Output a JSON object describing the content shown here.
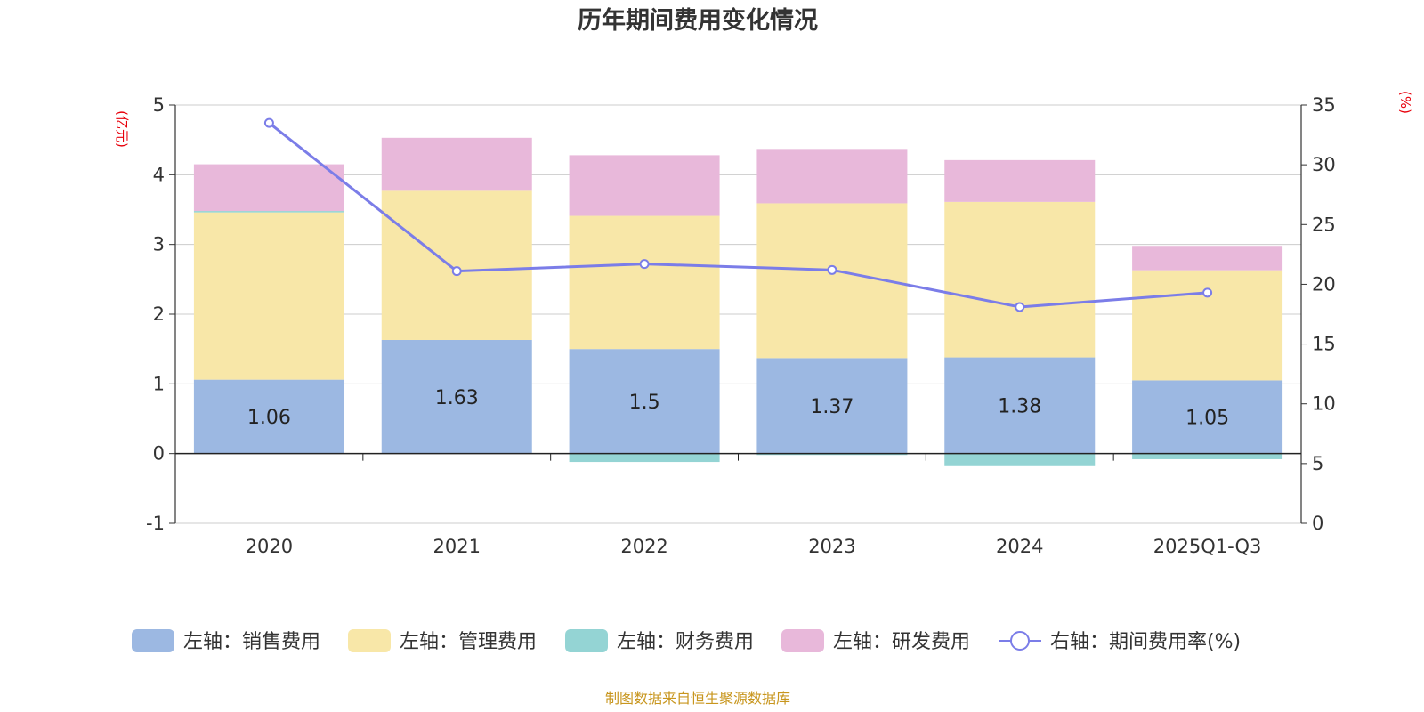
{
  "chart_data": {
    "type": "bar",
    "title": "历年期间费用变化情况",
    "categories": [
      "2020",
      "2021",
      "2022",
      "2023",
      "2024",
      "2025Q1-Q3"
    ],
    "left_axis": {
      "unit": "(亿元)",
      "min": -1,
      "max": 5,
      "ticks": [
        -1,
        0,
        1,
        2,
        3,
        4,
        5
      ]
    },
    "right_axis": {
      "unit": "(%)",
      "min": 0,
      "max": 35,
      "ticks": [
        0,
        5,
        10,
        15,
        20,
        25,
        30,
        35
      ]
    },
    "series": [
      {
        "name": "左轴：销售费用",
        "axis": "left",
        "kind": "stacked-bar",
        "color": "#9cb8e2",
        "values": [
          1.06,
          1.63,
          1.5,
          1.37,
          1.38,
          1.05
        ],
        "show_labels": true
      },
      {
        "name": "左轴：管理费用",
        "axis": "left",
        "kind": "stacked-bar",
        "color": "#f8e7a8",
        "values": [
          2.4,
          2.14,
          1.91,
          2.22,
          2.23,
          1.58
        ]
      },
      {
        "name": "左轴：财务费用",
        "axis": "left",
        "kind": "stacked-bar",
        "color": "#94d4d4",
        "values": [
          0.02,
          0.0,
          -0.12,
          -0.02,
          -0.18,
          -0.08
        ]
      },
      {
        "name": "左轴：研发费用",
        "axis": "left",
        "kind": "stacked-bar",
        "color": "#e8b8da",
        "values": [
          0.67,
          0.76,
          0.87,
          0.78,
          0.6,
          0.35
        ]
      },
      {
        "name": "右轴：期间费用率(%)",
        "axis": "right",
        "kind": "line",
        "color": "#7b7de8",
        "values": [
          33.5,
          21.1,
          21.7,
          21.2,
          18.1,
          19.3
        ]
      }
    ],
    "grid": true,
    "legend_position": "bottom",
    "source": "制图数据来自恒生聚源数据库"
  }
}
